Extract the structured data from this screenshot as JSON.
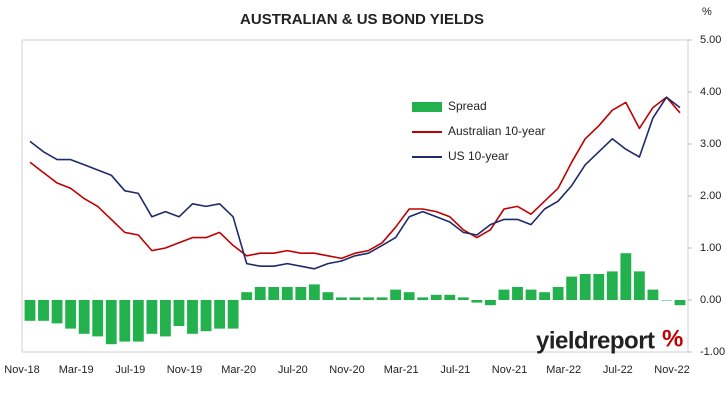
{
  "chart_data": {
    "type": "bar_line",
    "title": "AUSTRALIAN & US BOND YIELDS",
    "y_unit": "%",
    "logo": "yieldreport",
    "logo_symbol": "%",
    "categories": [
      "Nov-18",
      null,
      null,
      null,
      "Mar-19",
      null,
      null,
      null,
      "Jul-19",
      null,
      null,
      null,
      "Nov-19",
      null,
      null,
      null,
      "Mar-20",
      null,
      null,
      null,
      "Jul-20",
      null,
      null,
      null,
      "Nov-20",
      null,
      null,
      null,
      "Mar-21",
      null,
      null,
      null,
      "Jul-21",
      null,
      null,
      null,
      "Nov-21",
      null,
      null,
      null,
      "Mar-22",
      null,
      null,
      null,
      "Jul-22",
      null,
      null,
      null,
      "Nov-22"
    ],
    "series": [
      {
        "name": "Spread",
        "type": "bar",
        "color": "#22b14c",
        "values": [
          -0.4,
          -0.4,
          -0.45,
          -0.55,
          -0.65,
          -0.7,
          -0.85,
          -0.8,
          -0.8,
          -0.65,
          -0.7,
          -0.5,
          -0.65,
          -0.6,
          -0.55,
          -0.55,
          0.15,
          0.25,
          0.25,
          0.25,
          0.25,
          0.3,
          0.15,
          0.05,
          0.05,
          0.05,
          0.05,
          0.2,
          0.15,
          0.05,
          0.1,
          0.1,
          0.05,
          -0.05,
          -0.1,
          0.2,
          0.25,
          0.2,
          0.15,
          0.25,
          0.45,
          0.5,
          0.5,
          0.55,
          0.9,
          0.55,
          0.2,
          0,
          -0.1
        ]
      },
      {
        "name": "Australian 10-year",
        "type": "line",
        "color": "#c00000",
        "values": [
          2.65,
          2.45,
          2.25,
          2.15,
          1.95,
          1.8,
          1.55,
          1.3,
          1.25,
          0.95,
          1.0,
          1.1,
          1.2,
          1.2,
          1.3,
          1.05,
          0.85,
          0.9,
          0.9,
          0.95,
          0.9,
          0.9,
          0.85,
          0.8,
          0.9,
          0.95,
          1.1,
          1.4,
          1.75,
          1.75,
          1.7,
          1.6,
          1.35,
          1.2,
          1.35,
          1.75,
          1.8,
          1.65,
          1.9,
          2.15,
          2.65,
          3.1,
          3.35,
          3.65,
          3.8,
          3.3,
          3.7,
          3.9,
          3.6
        ]
      },
      {
        "name": "US 10-year",
        "type": "line",
        "color": "#1f2a6b",
        "values": [
          3.05,
          2.85,
          2.7,
          2.7,
          2.6,
          2.5,
          2.4,
          2.1,
          2.05,
          1.6,
          1.7,
          1.6,
          1.85,
          1.8,
          1.85,
          1.6,
          0.7,
          0.65,
          0.65,
          0.7,
          0.65,
          0.6,
          0.7,
          0.75,
          0.85,
          0.9,
          1.05,
          1.2,
          1.6,
          1.7,
          1.6,
          1.5,
          1.3,
          1.25,
          1.45,
          1.55,
          1.55,
          1.45,
          1.75,
          1.9,
          2.2,
          2.6,
          2.85,
          3.1,
          2.9,
          2.75,
          3.5,
          3.9,
          3.7
        ]
      }
    ],
    "ylim": [
      -1,
      5
    ],
    "yticks": [
      {
        "value": -1,
        "label": "-1.00"
      },
      {
        "value": 0,
        "label": "0.00"
      },
      {
        "value": 1,
        "label": "1.00"
      },
      {
        "value": 2,
        "label": "2.00"
      },
      {
        "value": 3,
        "label": "3.00"
      },
      {
        "value": 4,
        "label": "4.00"
      },
      {
        "value": 5,
        "label": "5.00"
      }
    ],
    "grid": false
  }
}
